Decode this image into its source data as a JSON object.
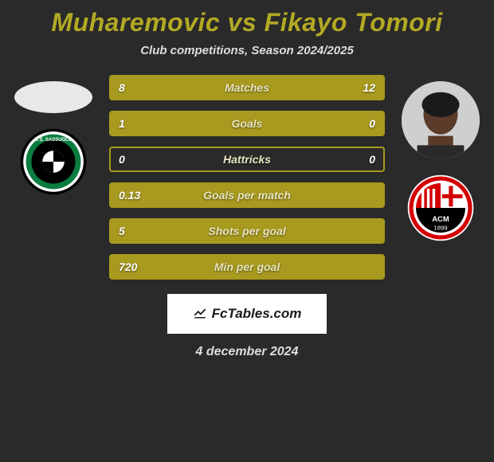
{
  "title": "Muharemovic vs Fikayo Tomori",
  "subtitle": "Club competitions, Season 2024/2025",
  "date": "4 december 2024",
  "watermark": "FcTables.com",
  "colors": {
    "background": "#2a2a2a",
    "accent": "#a89a1e",
    "title": "#b3a924",
    "text": "#ffffff",
    "subtext": "#dddddd",
    "watermark_bg": "#ffffff"
  },
  "left": {
    "player_name": "Muharemovic",
    "club_name": "Sassuolo",
    "club_colors": {
      "primary": "#0a7d3f",
      "secondary": "#000000",
      "ring": "#ffffff"
    }
  },
  "right": {
    "player_name": "Fikayo Tomori",
    "club_name": "AC Milan",
    "club_colors": {
      "primary": "#d40000",
      "secondary": "#000000",
      "ring": "#ffffff"
    }
  },
  "stats": [
    {
      "label": "Matches",
      "left_value": "8",
      "right_value": "12",
      "left_fill_pct": 40,
      "right_fill_pct": 60
    },
    {
      "label": "Goals",
      "left_value": "1",
      "right_value": "0",
      "left_fill_pct": 100,
      "right_fill_pct": 0
    },
    {
      "label": "Hattricks",
      "left_value": "0",
      "right_value": "0",
      "left_fill_pct": 0,
      "right_fill_pct": 0
    },
    {
      "label": "Goals per match",
      "left_value": "0.13",
      "right_value": "",
      "left_fill_pct": 100,
      "right_fill_pct": 0
    },
    {
      "label": "Shots per goal",
      "left_value": "5",
      "right_value": "",
      "left_fill_pct": 100,
      "right_fill_pct": 0
    },
    {
      "label": "Min per goal",
      "left_value": "720",
      "right_value": "",
      "left_fill_pct": 100,
      "right_fill_pct": 0
    }
  ]
}
